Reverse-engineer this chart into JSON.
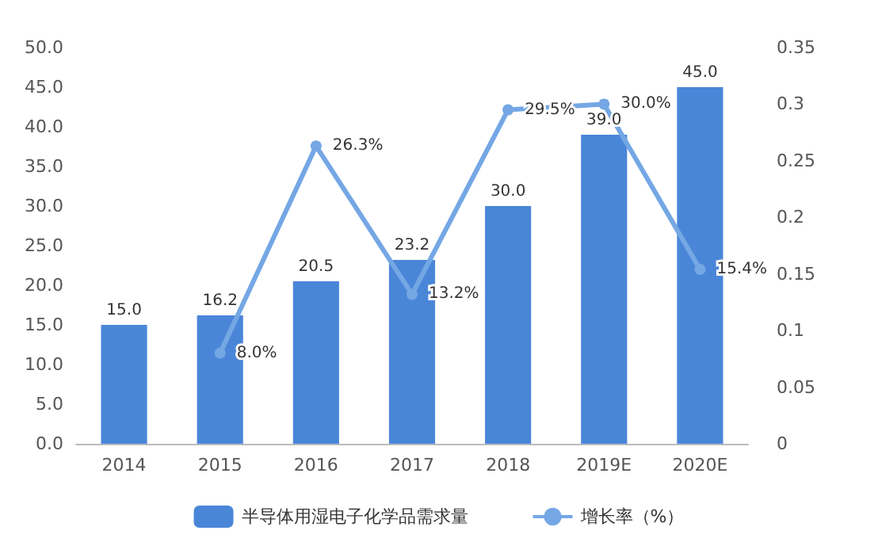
{
  "chart_data": {
    "type": "bar",
    "categories": [
      "2014",
      "2015",
      "2016",
      "2017",
      "2018",
      "2019E",
      "2020E"
    ],
    "series": [
      {
        "name": "半导体用湿电子化学品需求量",
        "type": "bar",
        "color": "#4a86d8",
        "values": [
          15.0,
          16.2,
          20.5,
          23.2,
          30.0,
          39.0,
          45.0
        ],
        "value_labels": [
          "15.0",
          "16.2",
          "20.5",
          "23.2",
          "30.0",
          "39.0",
          "45.0"
        ]
      },
      {
        "name": "增长率（%）",
        "type": "line",
        "axis": "y2",
        "color": "#74a7e4",
        "marker": "circle",
        "values": [
          null,
          0.08,
          0.263,
          0.132,
          0.295,
          0.3,
          0.154
        ],
        "value_labels": [
          null,
          "8.0%",
          "26.3%",
          "13.2%",
          "29.5%",
          "30.0%",
          "15.4%"
        ]
      }
    ],
    "ylim": [
      0,
      50
    ],
    "yticks": [
      {
        "value": 0,
        "label": "0.0"
      },
      {
        "value": 5,
        "label": "5.0"
      },
      {
        "value": 10,
        "label": "10.0"
      },
      {
        "value": 15,
        "label": "15.0"
      },
      {
        "value": 20,
        "label": "20.0"
      },
      {
        "value": 25,
        "label": "25.0"
      },
      {
        "value": 30,
        "label": "30.0"
      },
      {
        "value": 35,
        "label": "35.0"
      },
      {
        "value": 40,
        "label": "40.0"
      },
      {
        "value": 45,
        "label": "45.0"
      },
      {
        "value": 50,
        "label": "50.0"
      }
    ],
    "y2lim": [
      0,
      0.35
    ],
    "y2ticks": [
      0,
      0.05,
      0.1,
      0.15,
      0.2,
      0.25,
      0.3,
      0.35
    ],
    "legend": "bottom"
  }
}
